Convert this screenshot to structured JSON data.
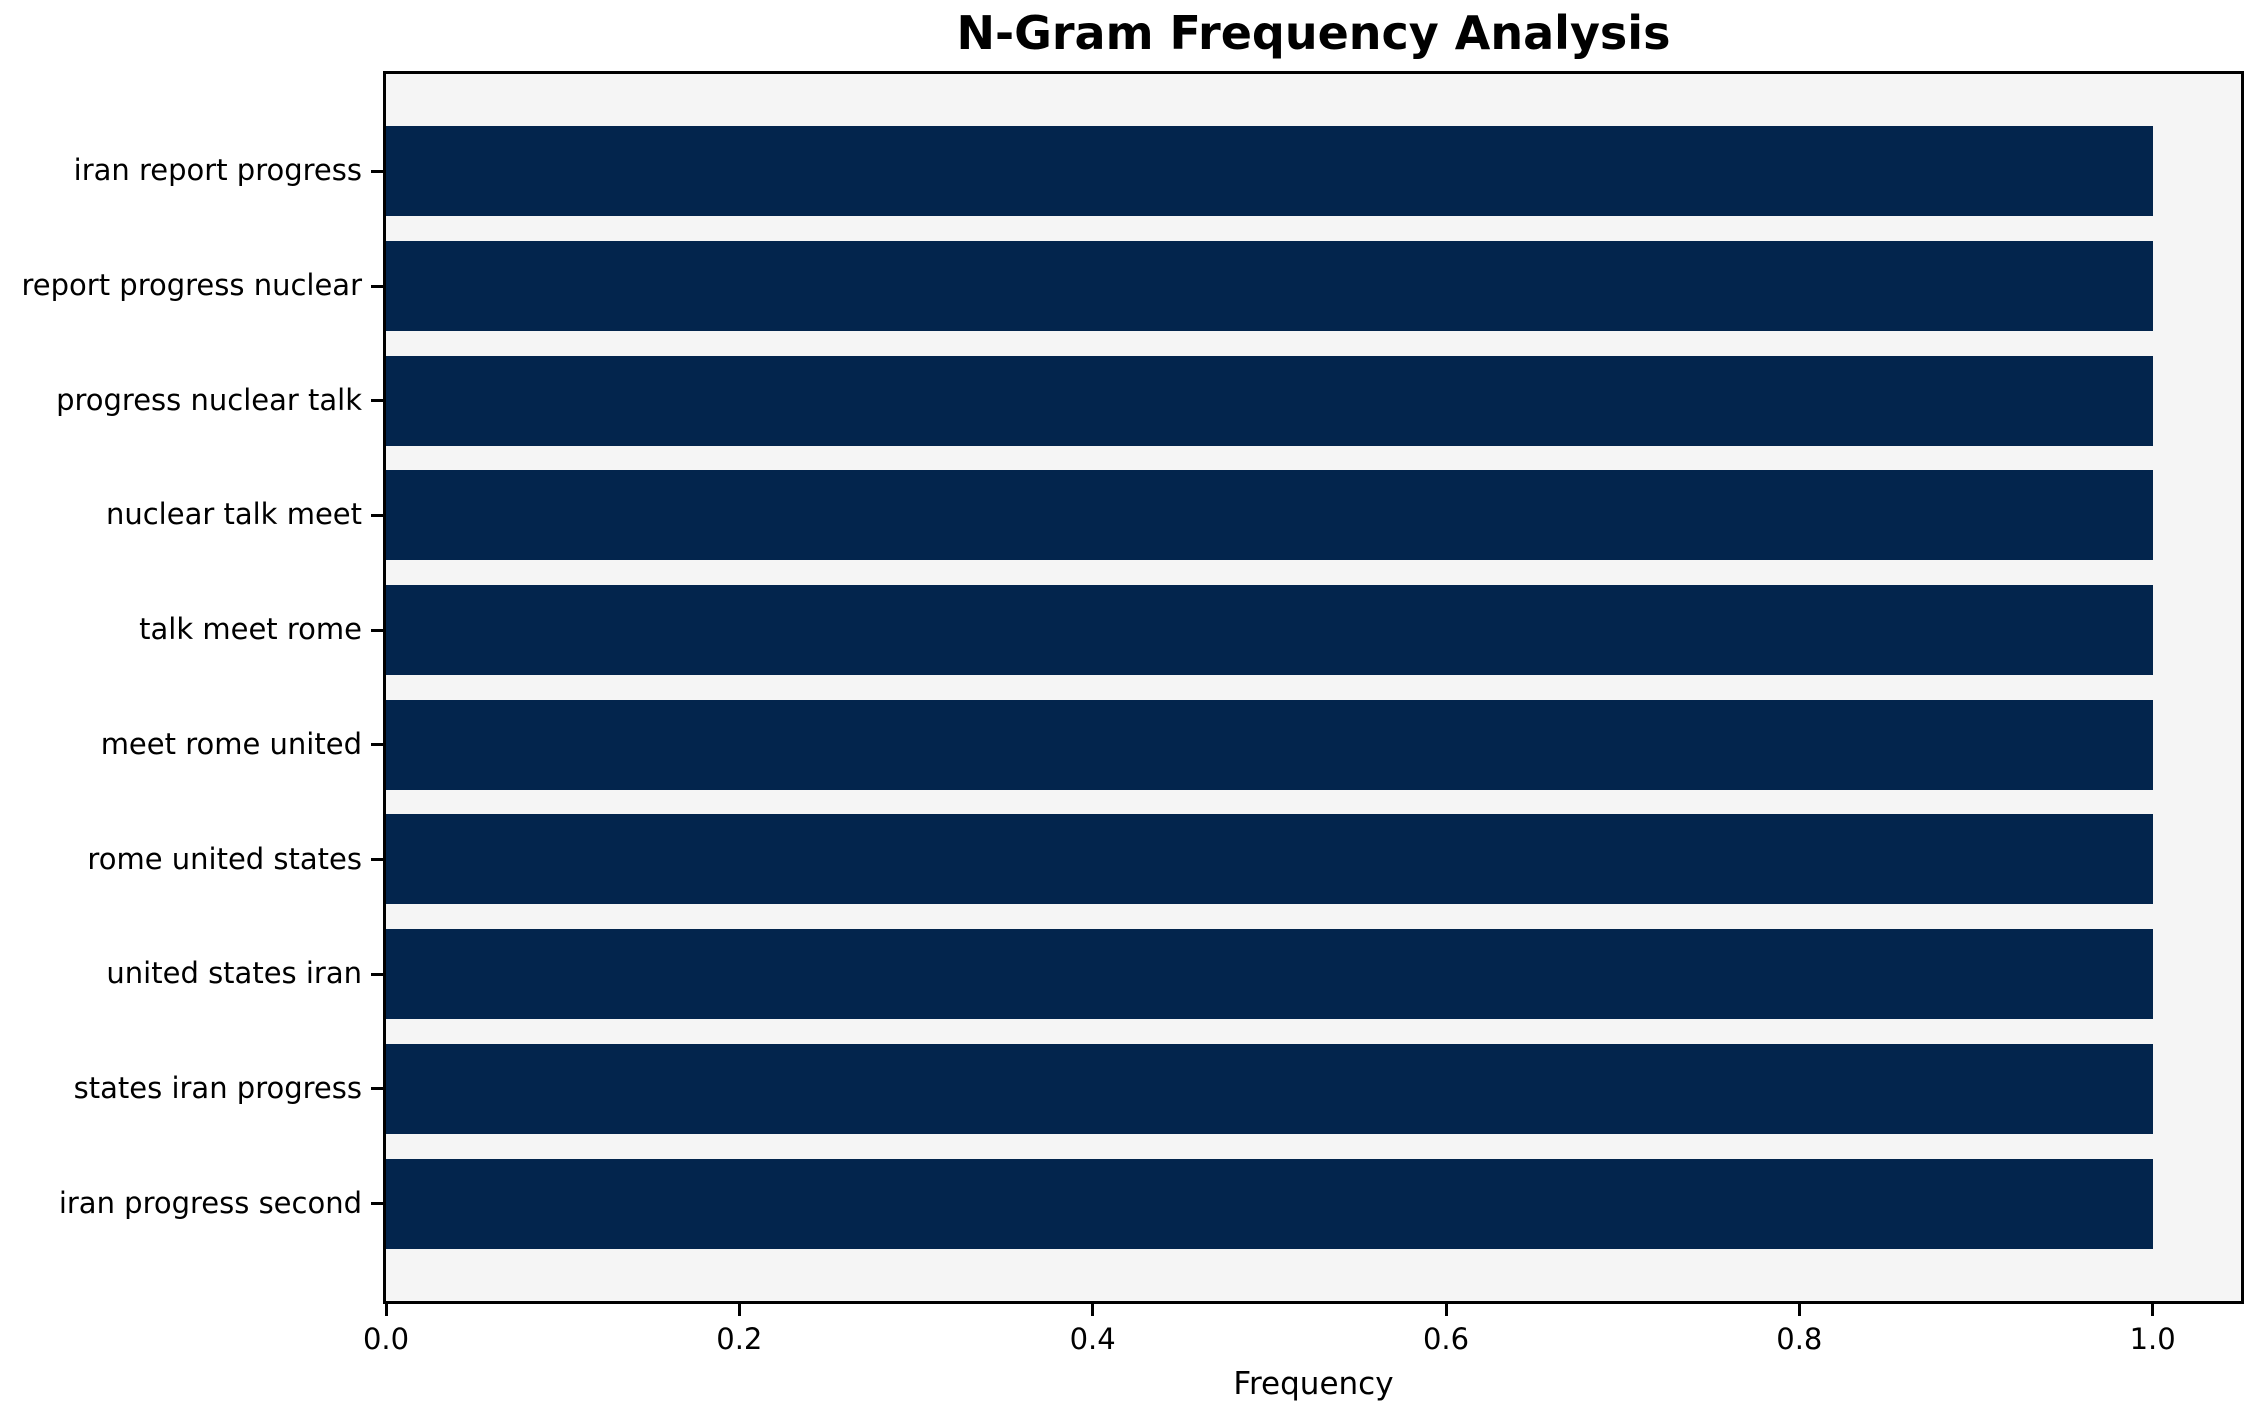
{
  "chart_data": {
    "type": "bar",
    "orientation": "horizontal",
    "title": "N-Gram Frequency Analysis",
    "xlabel": "Frequency",
    "ylabel": "",
    "categories": [
      "iran report progress",
      "report progress nuclear",
      "progress nuclear talk",
      "nuclear talk meet",
      "talk meet rome",
      "meet rome united",
      "rome united states",
      "united states iran",
      "states iran progress",
      "iran progress second"
    ],
    "values": [
      1.0,
      1.0,
      1.0,
      1.0,
      1.0,
      1.0,
      1.0,
      1.0,
      1.0,
      1.0
    ],
    "xlim": [
      0.0,
      1.05
    ],
    "xticks": [
      0.0,
      0.2,
      0.4,
      0.6,
      0.8,
      1.0
    ],
    "xtick_labels": [
      "0.0",
      "0.2",
      "0.4",
      "0.6",
      "0.8",
      "1.0"
    ],
    "grid": false,
    "legend": false,
    "colors": {
      "bar": "#03254d",
      "plot_background": "#f5f5f5",
      "figure_background": "#ffffff",
      "frame": "#000000",
      "text": "#000000"
    }
  }
}
